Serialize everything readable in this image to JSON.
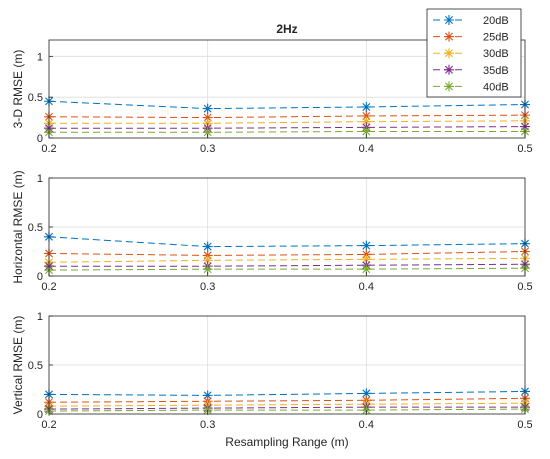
{
  "figure": {
    "title": "2Hz",
    "xlabel": "Resampling Range (m)"
  },
  "legend": {
    "placement": "top-right",
    "entries": [
      {
        "label": "20dB",
        "color": "#0072BD"
      },
      {
        "label": "25dB",
        "color": "#D95319"
      },
      {
        "label": "30dB",
        "color": "#EDB120"
      },
      {
        "label": "35dB",
        "color": "#7E2F8E"
      },
      {
        "label": "40dB",
        "color": "#77AC30"
      }
    ]
  },
  "chart_data": [
    {
      "type": "line",
      "title": "2Hz",
      "ylabel": "3-D RMSE (m)",
      "xlabel": "",
      "xlim": [
        0.2,
        0.5
      ],
      "ylim": [
        0,
        1.2
      ],
      "xticks": [
        "0.2",
        "0.3",
        "0.4",
        "0.5"
      ],
      "yticks": [
        "0",
        "0.5",
        "1"
      ],
      "grid": true,
      "x": [
        0.2,
        0.3,
        0.4,
        0.5
      ],
      "series": [
        {
          "name": "20dB",
          "values": [
            0.45,
            0.36,
            0.38,
            0.41
          ]
        },
        {
          "name": "25dB",
          "values": [
            0.26,
            0.25,
            0.27,
            0.28
          ]
        },
        {
          "name": "30dB",
          "values": [
            0.18,
            0.18,
            0.2,
            0.21
          ]
        },
        {
          "name": "35dB",
          "values": [
            0.12,
            0.12,
            0.13,
            0.14
          ]
        },
        {
          "name": "40dB",
          "values": [
            0.07,
            0.07,
            0.08,
            0.08
          ]
        }
      ]
    },
    {
      "type": "line",
      "ylabel": "Horizontal RMSE (m)",
      "xlabel": "",
      "xlim": [
        0.2,
        0.5
      ],
      "ylim": [
        0,
        1
      ],
      "xticks": [
        "0.2",
        "0.3",
        "0.4",
        "0.5"
      ],
      "yticks": [
        "0",
        "0.5",
        "1"
      ],
      "grid": true,
      "x": [
        0.2,
        0.3,
        0.4,
        0.5
      ],
      "series": [
        {
          "name": "20dB",
          "values": [
            0.4,
            0.3,
            0.31,
            0.33
          ]
        },
        {
          "name": "25dB",
          "values": [
            0.23,
            0.21,
            0.22,
            0.25
          ]
        },
        {
          "name": "30dB",
          "values": [
            0.14,
            0.16,
            0.17,
            0.18
          ]
        },
        {
          "name": "35dB",
          "values": [
            0.1,
            0.1,
            0.11,
            0.12
          ]
        },
        {
          "name": "40dB",
          "values": [
            0.06,
            0.07,
            0.07,
            0.08
          ]
        }
      ]
    },
    {
      "type": "line",
      "ylabel": "Vertical RMSE (m)",
      "xlabel": "Resampling Range (m)",
      "xlim": [
        0.2,
        0.5
      ],
      "ylim": [
        0,
        1
      ],
      "xticks": [
        "0.2",
        "0.3",
        "0.4",
        "0.5"
      ],
      "yticks": [
        "0",
        "0.5",
        "1"
      ],
      "grid": true,
      "x": [
        0.2,
        0.3,
        0.4,
        0.5
      ],
      "series": [
        {
          "name": "20dB",
          "values": [
            0.2,
            0.19,
            0.21,
            0.23
          ]
        },
        {
          "name": "25dB",
          "values": [
            0.12,
            0.13,
            0.14,
            0.16
          ]
        },
        {
          "name": "30dB",
          "values": [
            0.08,
            0.09,
            0.1,
            0.11
          ]
        },
        {
          "name": "35dB",
          "values": [
            0.05,
            0.06,
            0.07,
            0.07
          ]
        },
        {
          "name": "40dB",
          "values": [
            0.03,
            0.04,
            0.04,
            0.05
          ]
        }
      ]
    }
  ]
}
